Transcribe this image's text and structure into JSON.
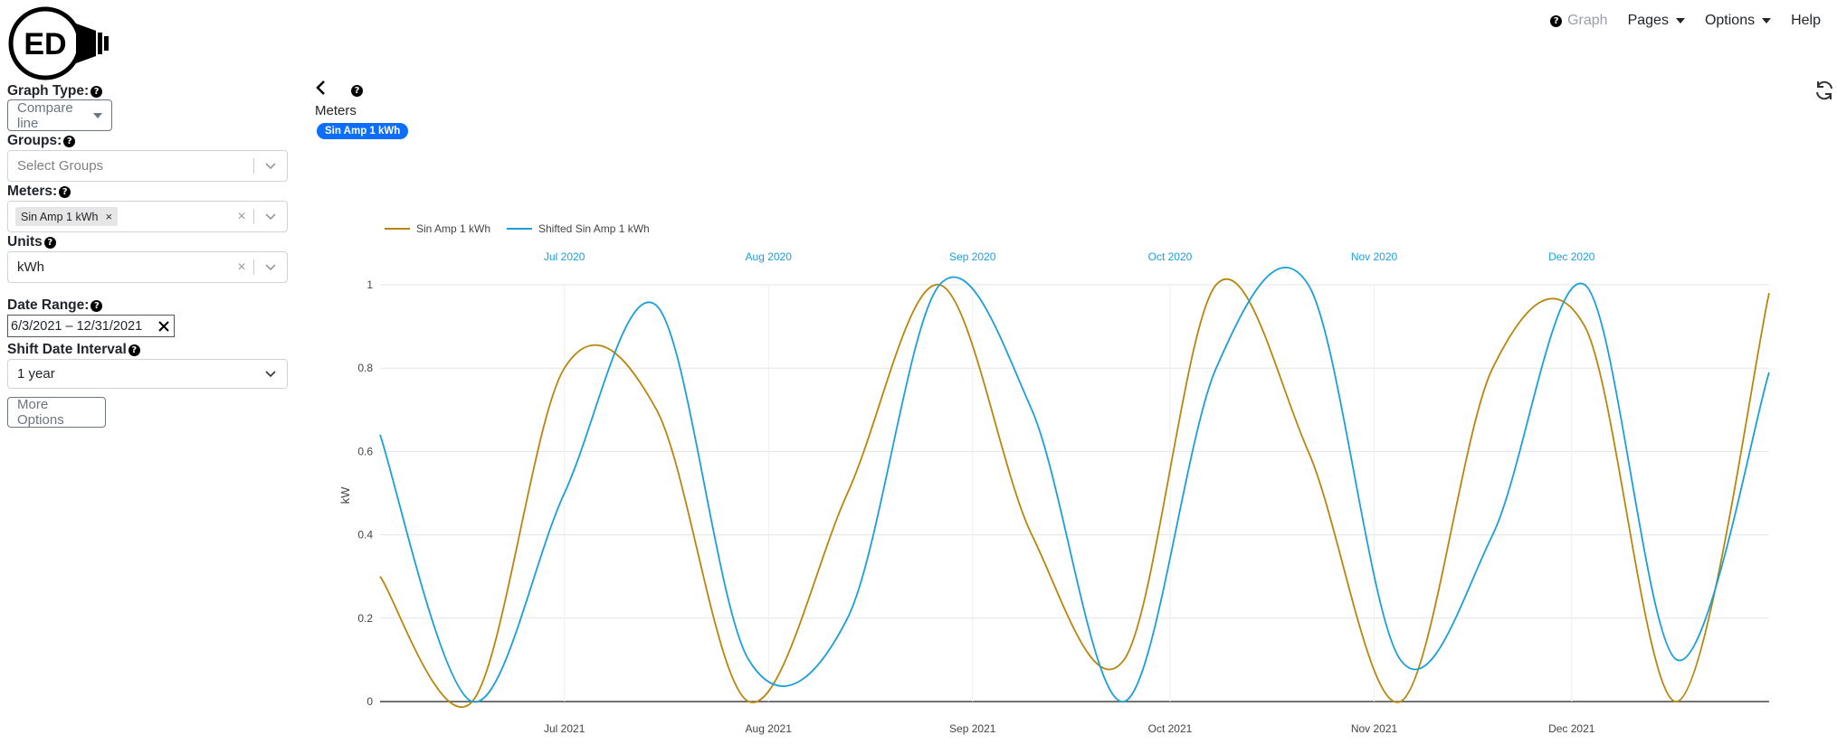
{
  "logo": {
    "text": "ED"
  },
  "nav": {
    "graph": "Graph",
    "pages": "Pages",
    "options": "Options",
    "help": "Help"
  },
  "sidebar": {
    "graph_type_label": "Graph Type:",
    "graph_type_value": "Compare line",
    "groups_label": "Groups:",
    "groups_placeholder": "Select Groups",
    "meters_label": "Meters:",
    "meters_selected": [
      "Sin Amp 1 kWh"
    ],
    "units_label": "Units",
    "units_value": "kWh",
    "date_range_label": "Date Range:",
    "date_range_value": "6/3/2021 – 12/31/2021",
    "shift_label": "Shift Date Interval",
    "shift_value": "1 year",
    "more_options": "More Options"
  },
  "header": {
    "meters_title": "Meters",
    "meter_badge": "Sin Amp 1 kWh"
  },
  "chart_data": {
    "type": "line",
    "legend_placement": "top-left",
    "ylabel": "kW",
    "ylim": [
      0,
      1
    ],
    "yticks": [
      "0",
      "0.2",
      "0.4",
      "0.6",
      "0.8",
      "1"
    ],
    "grid": true,
    "bottom_x_ticks": [
      "Jul 2021",
      "Aug 2021",
      "Sep 2021",
      "Oct 2021",
      "Nov 2021",
      "Dec 2021"
    ],
    "top_x_ticks": [
      "Jul 2020",
      "Aug 2020",
      "Sep 2020",
      "Oct 2020",
      "Nov 2020",
      "Dec 2020"
    ],
    "x_range": [
      "2021-06-03",
      "2021-12-31"
    ],
    "series": [
      {
        "name": "Sin Amp 1 kWh",
        "color": "#b8860b",
        "axis": "bottom",
        "x": [
          "2021-06-03",
          "2021-06-17",
          "2021-07-01",
          "2021-07-15",
          "2021-07-29",
          "2021-08-13",
          "2021-08-27",
          "2021-09-10",
          "2021-09-24",
          "2021-10-08",
          "2021-10-22",
          "2021-11-05",
          "2021-11-19",
          "2021-12-03",
          "2021-12-17",
          "2021-12-31"
        ],
        "y": [
          0.3,
          0.0,
          0.8,
          0.7,
          0.0,
          0.5,
          1.0,
          0.4,
          0.1,
          1.0,
          0.6,
          0.0,
          0.8,
          0.9,
          0.0,
          0.98
        ]
      },
      {
        "name": "Shifted Sin Amp 1 kWh",
        "color": "#1a9fdc",
        "axis": "top",
        "x": [
          "2020-06-03",
          "2020-06-17",
          "2020-07-01",
          "2020-07-15",
          "2020-07-29",
          "2020-08-13",
          "2020-08-27",
          "2020-09-10",
          "2020-09-24",
          "2020-10-08",
          "2020-10-22",
          "2020-11-05",
          "2020-11-19",
          "2020-12-03",
          "2020-12-17",
          "2020-12-31"
        ],
        "y": [
          0.64,
          0.0,
          0.5,
          0.95,
          0.1,
          0.2,
          1.0,
          0.7,
          0.0,
          0.8,
          1.0,
          0.1,
          0.4,
          1.0,
          0.1,
          0.79
        ]
      }
    ]
  }
}
